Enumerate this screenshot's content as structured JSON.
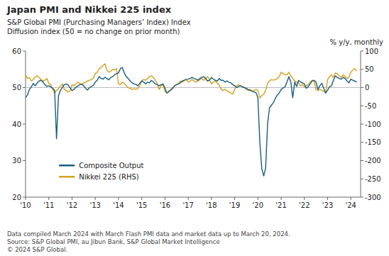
{
  "chart_data": {
    "type": "line",
    "title": "Japan PMI and Nikkei 225 index",
    "subtitle": "S&P Global PMI (Purchasing Managers’ Index) Index\nDiffusion index (50 = no change on prior month)",
    "y2label": "% y/y, monthly",
    "footnote": "Data compiled March 2024 with March Flash PMI data and market data up to March 20, 2024.\nSource: S&P Global PMI, au Jibun Bank, S&P Global Market Intelligence\n© 2024 S&P Global.",
    "xlim": [
      2010.0,
      2024.42
    ],
    "xticks": [
      {
        "value": 2010,
        "label": "'10"
      },
      {
        "value": 2011,
        "label": "'11"
      },
      {
        "value": 2012,
        "label": "'12"
      },
      {
        "value": 2013,
        "label": "'13"
      },
      {
        "value": 2014,
        "label": "'14"
      },
      {
        "value": 2015,
        "label": "'15"
      },
      {
        "value": 2016,
        "label": "'16"
      },
      {
        "value": 2017,
        "label": "'17"
      },
      {
        "value": 2018,
        "label": "'18"
      },
      {
        "value": 2019,
        "label": "'19"
      },
      {
        "value": 2020,
        "label": "'20"
      },
      {
        "value": 2021,
        "label": "'21"
      },
      {
        "value": 2022,
        "label": "'22"
      },
      {
        "value": 2023,
        "label": "'23"
      },
      {
        "value": 2024,
        "label": "'24"
      }
    ],
    "ylim": [
      20,
      60
    ],
    "yticks": [
      20,
      30,
      40,
      50,
      60
    ],
    "y2lim": [
      -300,
      100
    ],
    "y2ticks": [
      -300,
      -250,
      -200,
      -150,
      -100,
      -50,
      0,
      50,
      100
    ],
    "hline": 50,
    "grid": false,
    "legend": "lower left",
    "x": [
      2010.0,
      2010.083,
      2010.167,
      2010.25,
      2010.333,
      2010.417,
      2010.5,
      2010.583,
      2010.667,
      2010.75,
      2010.833,
      2010.917,
      2011.0,
      2011.083,
      2011.167,
      2011.25,
      2011.333,
      2011.417,
      2011.5,
      2011.583,
      2011.667,
      2011.75,
      2011.833,
      2011.917,
      2012.0,
      2012.083,
      2012.167,
      2012.25,
      2012.333,
      2012.417,
      2012.5,
      2012.583,
      2012.667,
      2012.75,
      2012.833,
      2012.917,
      2013.0,
      2013.083,
      2013.167,
      2013.25,
      2013.333,
      2013.417,
      2013.5,
      2013.583,
      2013.667,
      2013.75,
      2013.833,
      2013.917,
      2014.0,
      2014.083,
      2014.167,
      2014.25,
      2014.333,
      2014.417,
      2014.5,
      2014.583,
      2014.667,
      2014.75,
      2014.833,
      2014.917,
      2015.0,
      2015.083,
      2015.167,
      2015.25,
      2015.333,
      2015.417,
      2015.5,
      2015.583,
      2015.667,
      2015.75,
      2015.833,
      2015.917,
      2016.0,
      2016.083,
      2016.167,
      2016.25,
      2016.333,
      2016.417,
      2016.5,
      2016.583,
      2016.667,
      2016.75,
      2016.833,
      2016.917,
      2017.0,
      2017.083,
      2017.167,
      2017.25,
      2017.333,
      2017.417,
      2017.5,
      2017.583,
      2017.667,
      2017.75,
      2017.833,
      2017.917,
      2018.0,
      2018.083,
      2018.167,
      2018.25,
      2018.333,
      2018.417,
      2018.5,
      2018.583,
      2018.667,
      2018.75,
      2018.833,
      2018.917,
      2019.0,
      2019.083,
      2019.167,
      2019.25,
      2019.333,
      2019.417,
      2019.5,
      2019.583,
      2019.667,
      2019.75,
      2019.833,
      2019.917,
      2020.0,
      2020.083,
      2020.167,
      2020.25,
      2020.333,
      2020.417,
      2020.5,
      2020.583,
      2020.667,
      2020.75,
      2020.833,
      2020.917,
      2021.0,
      2021.083,
      2021.167,
      2021.25,
      2021.333,
      2021.417,
      2021.5,
      2021.583,
      2021.667,
      2021.75,
      2021.833,
      2021.917,
      2022.0,
      2022.083,
      2022.167,
      2022.25,
      2022.333,
      2022.417,
      2022.5,
      2022.583,
      2022.667,
      2022.75,
      2022.833,
      2022.917,
      2023.0,
      2023.083,
      2023.167,
      2023.25,
      2023.333,
      2023.417,
      2023.5,
      2023.583,
      2023.667,
      2023.75,
      2023.833,
      2023.917,
      2024.0,
      2024.083,
      2024.167,
      2024.25
    ],
    "series": [
      {
        "name": "Composite Output",
        "color": "#1a5e7a",
        "axis": "y",
        "values": [
          47.2,
          48.0,
          49.5,
          50.2,
          51.1,
          50.5,
          51.3,
          51.8,
          52.0,
          51.5,
          50.8,
          50.3,
          50.5,
          50.2,
          49.8,
          49.3,
          36.0,
          47.7,
          49.2,
          50.1,
          50.8,
          51.0,
          50.7,
          49.9,
          49.2,
          49.5,
          50.1,
          50.4,
          50.8,
          50.9,
          50.5,
          49.8,
          49.3,
          50.0,
          50.3,
          50.6,
          51.5,
          52.0,
          53.0,
          52.5,
          52.3,
          52.8,
          52.5,
          52.1,
          52.8,
          53.0,
          53.5,
          53.8,
          54.0,
          55.2,
          55.5,
          54.0,
          53.0,
          52.5,
          51.8,
          51.3,
          51.0,
          50.9,
          50.5,
          51.2,
          51.8,
          51.5,
          51.0,
          51.5,
          51.3,
          52.0,
          51.5,
          51.0,
          50.8,
          50.5,
          50.8,
          51.0,
          49.8,
          48.5,
          49.0,
          49.3,
          49.8,
          50.5,
          50.8,
          51.0,
          51.3,
          51.8,
          52.0,
          52.2,
          52.3,
          52.5,
          52.8,
          52.5,
          52.3,
          52.0,
          52.5,
          52.8,
          53.0,
          52.5,
          51.8,
          52.0,
          52.8,
          52.3,
          52.0,
          51.8,
          52.5,
          52.0,
          52.0,
          51.5,
          51.8,
          51.5,
          51.3,
          50.8,
          50.5,
          50.0,
          50.3,
          50.5,
          50.2,
          50.0,
          49.8,
          49.5,
          49.2,
          49.0,
          48.8,
          48.6,
          47.3,
          35.0,
          27.8,
          25.8,
          28.0,
          40.0,
          44.5,
          45.2,
          45.9,
          47.0,
          48.0,
          48.5,
          49.5,
          49.9,
          50.2,
          51.5,
          53.0,
          51.5,
          47.2,
          51.5,
          50.3,
          52.0,
          51.5,
          51.3,
          51.0,
          49.8,
          50.3,
          51.0,
          51.8,
          52.0,
          51.5,
          49.5,
          50.5,
          51.2,
          49.8,
          48.5,
          49.3,
          50.2,
          50.5,
          52.0,
          53.2,
          52.8,
          52.5,
          52.3,
          52.8,
          52.5,
          51.8,
          51.3,
          52.3,
          52.0,
          51.8,
          51.5
        ]
      },
      {
        "name": "Nikkei 225 (RHS)",
        "color": "#d4a020",
        "axis": "y2",
        "values": [
          35,
          25,
          28,
          18,
          22,
          30,
          32,
          28,
          22,
          18,
          20,
          25,
          12,
          8,
          -5,
          -15,
          -8,
          -3,
          5,
          10,
          -5,
          -8,
          -12,
          -10,
          8,
          5,
          10,
          15,
          12,
          8,
          12,
          15,
          18,
          20,
          22,
          25,
          38,
          42,
          52,
          55,
          60,
          65,
          48,
          42,
          45,
          50,
          48,
          52,
          10,
          8,
          15,
          12,
          5,
          0,
          -2,
          -5,
          -3,
          -5,
          -2,
          5,
          18,
          22,
          20,
          25,
          30,
          32,
          28,
          20,
          10,
          -5,
          5,
          8,
          -10,
          -15,
          -12,
          -5,
          0,
          5,
          8,
          12,
          18,
          15,
          20,
          22,
          15,
          18,
          22,
          18,
          15,
          18,
          22,
          25,
          20,
          25,
          30,
          22,
          10,
          15,
          18,
          12,
          8,
          -5,
          -8,
          -5,
          -8,
          -12,
          -15,
          -18,
          -5,
          5,
          8,
          5,
          2,
          0,
          -5,
          -8,
          -5,
          -10,
          -8,
          -5,
          -8,
          -28,
          -22,
          -18,
          -8,
          12,
          18,
          22,
          20,
          22,
          25,
          30,
          42,
          38,
          35,
          35,
          42,
          32,
          25,
          18,
          15,
          12,
          5,
          8,
          2,
          5,
          8,
          15,
          20,
          18,
          -5,
          -8,
          -5,
          -8,
          -10,
          -15,
          22,
          30,
          35,
          28,
          40,
          38,
          32,
          28,
          35,
          30,
          25,
          28,
          42,
          48,
          52,
          45
        ]
      }
    ]
  }
}
